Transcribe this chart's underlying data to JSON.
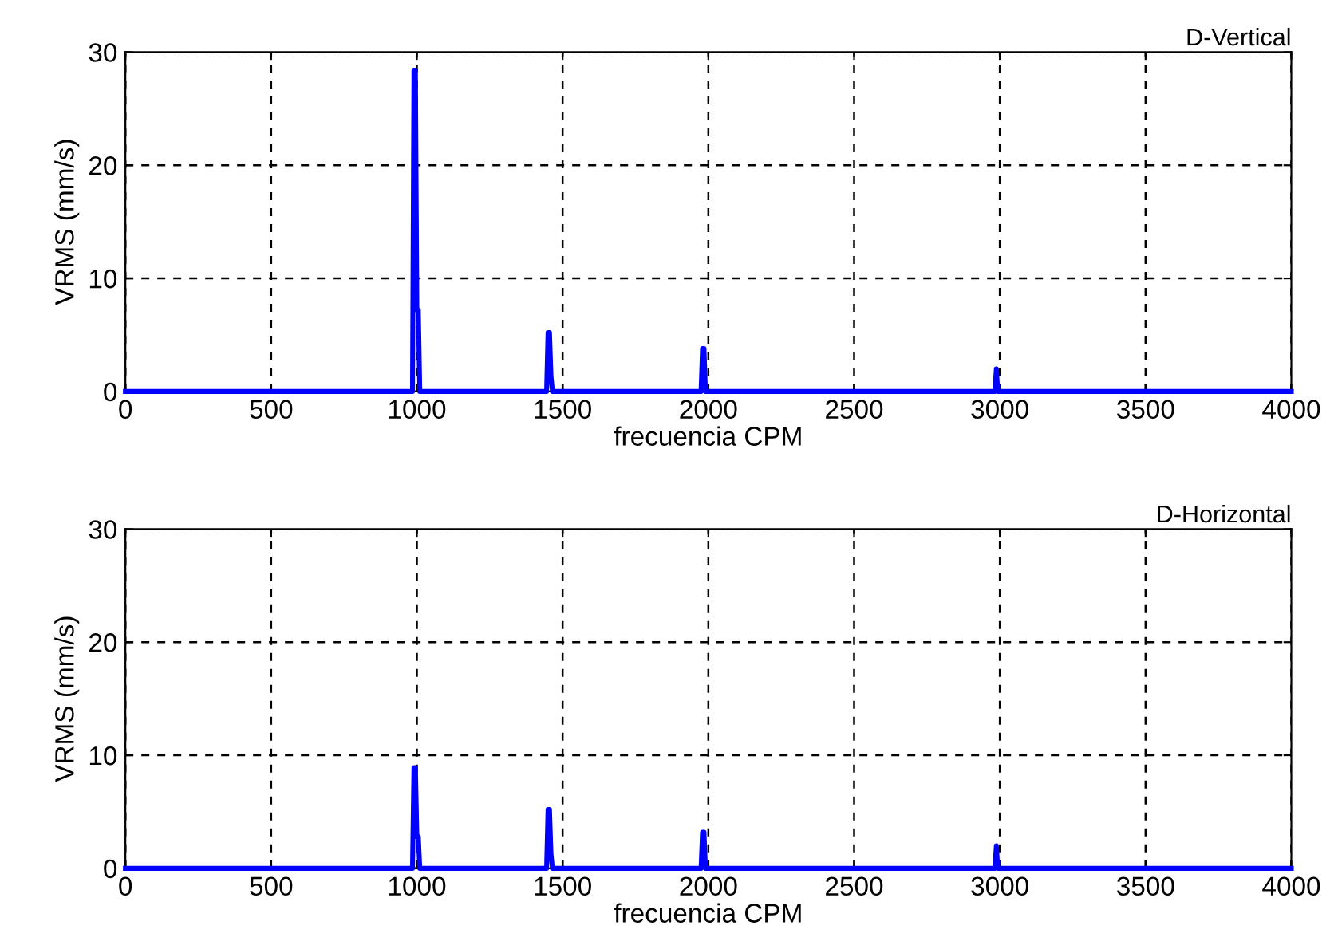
{
  "chart_data": [
    {
      "type": "line",
      "title": "D-Vertical",
      "xlabel": "frecuencia CPM",
      "ylabel": "VRMS (mm/s)",
      "xlim": [
        0,
        4000
      ],
      "ylim": [
        0,
        30
      ],
      "xticks": [
        0,
        500,
        1000,
        1500,
        2000,
        2500,
        3000,
        3500,
        4000
      ],
      "yticks": [
        0,
        10,
        20,
        30
      ],
      "grid": true,
      "line_style": "solid",
      "marker": "none",
      "series": [
        {
          "color": "#0000ff",
          "x": [
            0,
            985,
            990,
            995,
            1000,
            1005,
            1010,
            1445,
            1450,
            1455,
            1460,
            1465,
            1975,
            1980,
            1985,
            1990,
            2983,
            2988,
            2993,
            4000
          ],
          "values": [
            0,
            0,
            28.4,
            28.4,
            7.2,
            7.2,
            0,
            0,
            5.2,
            5.2,
            1.4,
            0,
            0,
            3.8,
            3.8,
            0,
            0,
            2.0,
            0,
            0
          ]
        }
      ]
    },
    {
      "type": "line",
      "title": "D-Horizontal",
      "xlabel": "frecuencia CPM",
      "ylabel": "VRMS (mm/s)",
      "xlim": [
        0,
        4000
      ],
      "ylim": [
        0,
        30
      ],
      "xticks": [
        0,
        500,
        1000,
        1500,
        2000,
        2500,
        3000,
        3500,
        4000
      ],
      "yticks": [
        0,
        10,
        20,
        30
      ],
      "grid": true,
      "line_style": "solid",
      "marker": "none",
      "series": [
        {
          "color": "#0000ff",
          "x": [
            0,
            985,
            990,
            995,
            1000,
            1005,
            1010,
            1445,
            1450,
            1455,
            1460,
            1465,
            1975,
            1980,
            1985,
            1990,
            2983,
            2988,
            2993,
            4000
          ],
          "values": [
            0,
            0,
            8.9,
            8.9,
            2.8,
            2.8,
            0,
            0,
            5.2,
            5.2,
            1.3,
            0,
            0,
            3.2,
            3.2,
            0,
            0,
            2.0,
            0,
            0
          ]
        }
      ]
    }
  ]
}
